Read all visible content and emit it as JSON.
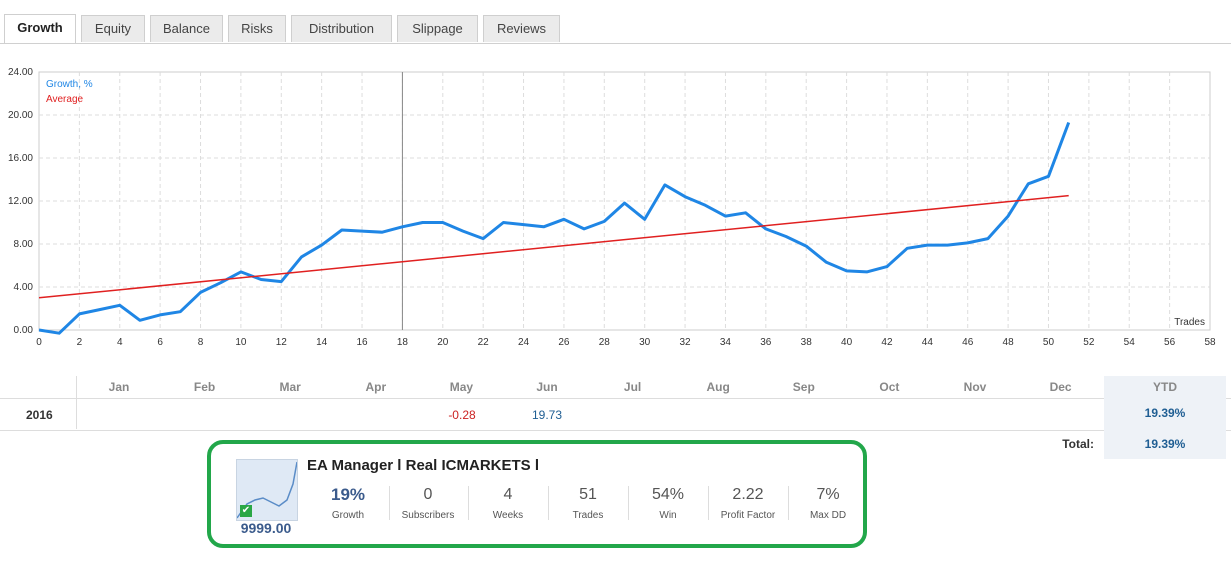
{
  "tabs": [
    {
      "label": "Growth",
      "active": true
    },
    {
      "label": "Equity",
      "active": false
    },
    {
      "label": "Balance",
      "active": false
    },
    {
      "label": "Risks",
      "active": false
    },
    {
      "label": "Distribution",
      "active": false
    },
    {
      "label": "Slippage",
      "active": false
    },
    {
      "label": "Reviews",
      "active": false
    }
  ],
  "chart_data": {
    "type": "line",
    "xlabel": "Trades",
    "ylabel": "",
    "xlim": [
      0,
      58
    ],
    "ylim": [
      0,
      24
    ],
    "x_ticks": [
      0,
      2,
      4,
      6,
      8,
      10,
      12,
      14,
      16,
      18,
      20,
      22,
      24,
      26,
      28,
      30,
      32,
      34,
      36,
      38,
      40,
      42,
      44,
      46,
      48,
      50,
      52,
      54,
      56,
      58
    ],
    "y_ticks": [
      "0.00",
      "4.00",
      "8.00",
      "12.00",
      "16.00",
      "20.00",
      "24.00"
    ],
    "grid": true,
    "legend_position": "top-left",
    "marker_x": 18,
    "series": [
      {
        "name": "Growth, %",
        "color": "#1f86e5",
        "x": [
          0,
          1,
          2,
          3,
          4,
          5,
          6,
          7,
          8,
          9,
          10,
          11,
          12,
          13,
          14,
          15,
          16,
          17,
          18,
          19,
          20,
          21,
          22,
          23,
          24,
          25,
          26,
          27,
          28,
          29,
          30,
          31,
          32,
          33,
          34,
          35,
          36,
          37,
          38,
          39,
          40,
          41,
          42,
          43,
          44,
          45,
          46,
          47,
          48,
          49,
          50,
          51
        ],
        "y": [
          0.0,
          -0.3,
          1.5,
          1.9,
          2.3,
          0.9,
          1.4,
          1.7,
          3.5,
          4.4,
          5.4,
          4.7,
          4.5,
          6.8,
          7.9,
          9.3,
          9.2,
          9.1,
          9.6,
          10.0,
          10.0,
          9.2,
          8.5,
          10.0,
          9.8,
          9.6,
          10.3,
          9.4,
          10.1,
          11.8,
          10.3,
          13.5,
          12.4,
          11.6,
          10.6,
          10.9,
          9.4,
          8.7,
          7.8,
          6.3,
          5.5,
          5.4,
          5.9,
          7.6,
          7.9,
          7.9,
          8.1,
          8.5,
          10.6,
          13.6,
          14.3,
          19.3
        ]
      },
      {
        "name": "Average",
        "color": "#e02020",
        "x": [
          0,
          51
        ],
        "y": [
          3.0,
          12.5
        ]
      }
    ]
  },
  "table": {
    "months": [
      "Jan",
      "Feb",
      "Mar",
      "Apr",
      "May",
      "Jun",
      "Jul",
      "Aug",
      "Sep",
      "Oct",
      "Nov",
      "Dec"
    ],
    "ytd_label": "YTD",
    "year": "2016",
    "values": {
      "May": "-0.28",
      "Jun": "19.73"
    },
    "ytd_value": "19.39%",
    "total_label": "Total:",
    "total_value": "19.39%"
  },
  "signal": {
    "title": "EA Manager l Real ICMARKETS l",
    "price": "9999.00",
    "stats": [
      {
        "value": "19%",
        "label": "Growth"
      },
      {
        "value": "0",
        "label": "Subscribers"
      },
      {
        "value": "4",
        "label": "Weeks"
      },
      {
        "value": "51",
        "label": "Trades"
      },
      {
        "value": "54%",
        "label": "Win"
      },
      {
        "value": "2.22",
        "label": "Profit Factor"
      },
      {
        "value": "7%",
        "label": "Max DD"
      }
    ]
  },
  "colors": {
    "accent": "#1f86e5",
    "average": "#e02020",
    "card_border": "#22a74a",
    "ytd_text": "#1f5e93"
  }
}
